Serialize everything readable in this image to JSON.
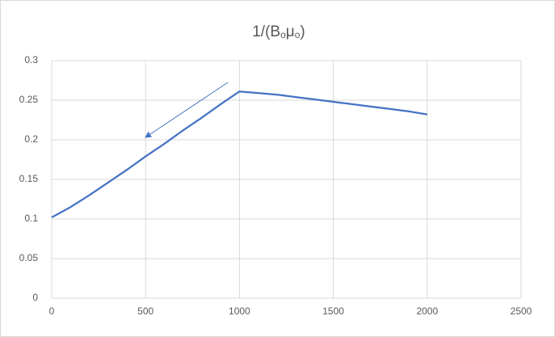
{
  "chart_data": {
    "type": "line",
    "title": [
      "1/(B",
      "o",
      "μ",
      "o",
      ")"
    ],
    "x": [
      0,
      100,
      200,
      300,
      400,
      500,
      600,
      700,
      800,
      900,
      1000,
      1100,
      1200,
      1300,
      1400,
      1500,
      1600,
      1700,
      1800,
      1900,
      2000
    ],
    "series": [
      {
        "color": "#4472c4",
        "values": [
          0.102,
          0.115,
          0.13,
          0.146,
          0.162,
          0.179,
          0.195,
          0.212,
          0.228,
          0.245,
          0.261,
          0.259,
          0.257,
          0.254,
          0.251,
          0.248,
          0.245,
          0.242,
          0.239,
          0.236,
          0.232
        ]
      }
    ],
    "xlim": [
      0,
      2500
    ],
    "xticks": [
      0,
      500,
      1000,
      1500,
      2000,
      2500
    ],
    "ylim": [
      0,
      0.3
    ],
    "yticks": [
      0,
      0.05,
      0.1,
      0.15,
      0.2,
      0.25,
      0.3
    ],
    "grid": true
  }
}
